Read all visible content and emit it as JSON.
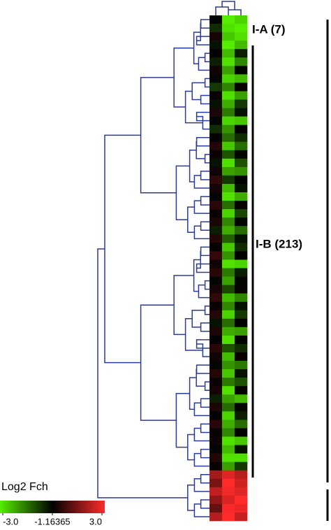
{
  "chart_data": {
    "type": "heatmap",
    "values": [
      [
        -1.2,
        -3,
        -2.8
      ],
      [
        -1.5,
        -2.9,
        -3
      ],
      [
        -0.8,
        -2.7,
        -2.9
      ],
      [
        -1.3,
        -3,
        -2.6
      ],
      [
        -1.1,
        -2.6,
        -1.4
      ],
      [
        -1.4,
        -2.9,
        -2.2
      ],
      [
        -0.9,
        -2.4,
        -1.2
      ],
      [
        -1.2,
        -2.8,
        -2.6
      ],
      [
        -1.6,
        -2.2,
        -1.0
      ],
      [
        -1.0,
        -2.9,
        -2.4
      ],
      [
        -1.3,
        -2.5,
        -1.6
      ],
      [
        -0.7,
        -2.1,
        -1.3
      ],
      [
        -1.2,
        -2.8,
        -2.7
      ],
      [
        -1.5,
        -2.3,
        -1.1
      ],
      [
        -1.1,
        -2.0,
        -1.5
      ],
      [
        -0.6,
        -2.7,
        -2.0
      ],
      [
        -1.0,
        -1.8,
        -1.2
      ],
      [
        -1.3,
        -2.9,
        -1.8
      ],
      [
        -0.9,
        -2.4,
        -2.3
      ],
      [
        -0.4,
        -1.6,
        -1.1
      ],
      [
        -0.8,
        -2.6,
        -1.3
      ],
      [
        -1.2,
        -2.9,
        -2.5
      ],
      [
        -0.5,
        -2.0,
        -1.0
      ],
      [
        -1.0,
        -2.8,
        -1.7
      ],
      [
        -0.7,
        -2.2,
        -1.2
      ],
      [
        -1.4,
        -2.5,
        -2.0
      ],
      [
        -0.6,
        -1.9,
        -1.3
      ],
      [
        -1.1,
        -2.7,
        -1.5
      ],
      [
        -0.3,
        -2.3,
        -1.1
      ],
      [
        -0.9,
        -2.9,
        -2.8
      ],
      [
        -0.5,
        -2.1,
        -1.4
      ],
      [
        -1.2,
        -2.4,
        -1.2
      ],
      [
        -0.8,
        -1.7,
        -1.0
      ],
      [
        -0.4,
        -2.6,
        -2.2
      ],
      [
        -1.0,
        -2.2,
        -1.3
      ],
      [
        -0.6,
        -2.8,
        -1.6
      ],
      [
        -1.3,
        -2.0,
        -1.1
      ],
      [
        -0.7,
        -2.5,
        -2.4
      ],
      [
        -1.1,
        -2.9,
        -1.2
      ],
      [
        -0.5,
        -1.8,
        -1.5
      ],
      [
        -0.9,
        -2.6,
        -1.0
      ],
      [
        -1.2,
        -2.3,
        -2.1
      ],
      [
        -0.6,
        -2.7,
        -1.3
      ],
      [
        -1.0,
        -2.1,
        -1.8
      ],
      [
        -0.8,
        -2.9,
        -1.1
      ],
      [
        -1.4,
        -2.4,
        -2.6
      ],
      [
        -0.7,
        -2.0,
        -1.2
      ],
      [
        -1.1,
        -2.8,
        -1.4
      ],
      [
        -0.5,
        -2.5,
        -2.0
      ],
      [
        -1.0,
        -2.2,
        -1.1
      ],
      [
        -0.9,
        -2.9,
        -2.7
      ],
      [
        -1.2,
        -2.6,
        -1.3
      ],
      [
        -0.6,
        -2.9,
        -2.9
      ],
      [
        -1.0,
        -2.4,
        -1.6
      ],
      [
        1.5,
        2.5,
        1.8
      ],
      [
        0.8,
        3,
        2.2
      ],
      [
        2,
        2.8,
        2.5
      ],
      [
        1.2,
        2.4,
        3
      ],
      [
        0.5,
        2.9,
        2.7
      ],
      [
        1.8,
        3,
        2.1
      ]
    ],
    "annotations": [
      "I-A (7)",
      "I-B (213)"
    ],
    "colorbar": {
      "title": "Log2 Fch",
      "ticks": [
        {
          "value": -3,
          "label": "-3.0"
        },
        -1.16365,
        {
          "value": 3,
          "label": "3.0"
        }
      ],
      "colors": [
        "#55ee00",
        "#000000",
        "#ff2a2a"
      ]
    }
  }
}
